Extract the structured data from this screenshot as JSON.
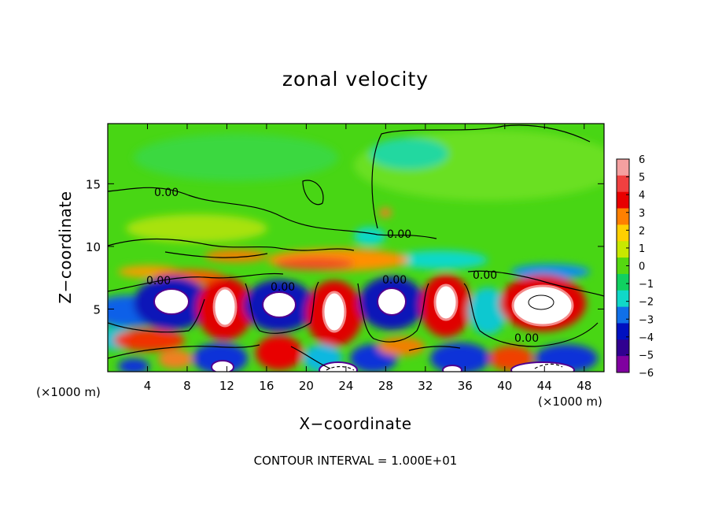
{
  "chart_data": {
    "type": "heatmap",
    "title": "zonal velocity",
    "xlabel": "X−coordinate",
    "ylabel": "Z−coordinate",
    "x_unit_note": "(×1000 m)",
    "footer": "CONTOUR INTERVAL = 1.000E+01",
    "xlim": [
      0,
      50
    ],
    "ylim": [
      0,
      19.8
    ],
    "x_ticks": [
      4,
      8,
      12,
      16,
      20,
      24,
      28,
      32,
      36,
      40,
      44,
      48
    ],
    "y_ticks": [
      5,
      10,
      15
    ],
    "contour_labels": [
      "0.00",
      "0.00",
      "0.00",
      "0.00",
      "0.00",
      "0.00"
    ],
    "colorbar": {
      "values": [
        6,
        5,
        4,
        3,
        2,
        1,
        0,
        -1,
        -2,
        -3,
        -4,
        -5,
        -6
      ],
      "tick_labels": [
        "6",
        "5",
        "4",
        "3",
        "2",
        "1",
        "0",
        "−1",
        "−2",
        "−3",
        "−4",
        "−5",
        "−6"
      ],
      "colors": [
        "#f4a0a0",
        "#f04040",
        "#e80000",
        "#ff8000",
        "#ffd000",
        "#c8e800",
        "#55d810",
        "#10d060",
        "#10d8c8",
        "#1070e8",
        "#0010c0",
        "#300090",
        "#8000a0"
      ]
    }
  }
}
